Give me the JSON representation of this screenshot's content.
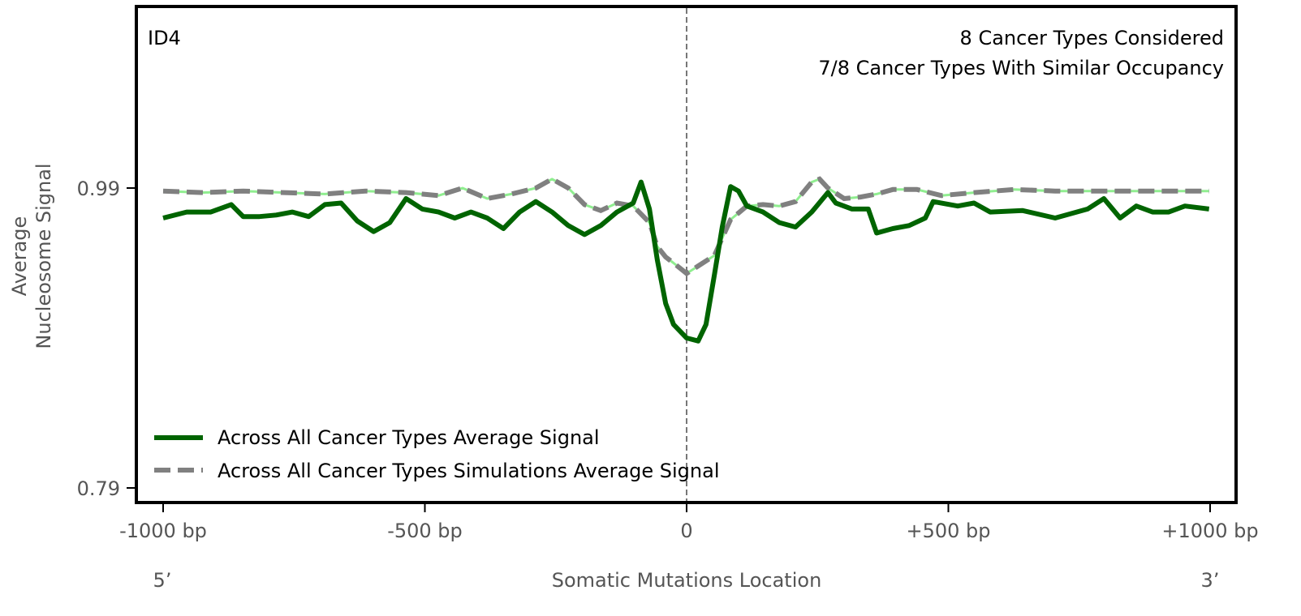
{
  "chart_data": {
    "type": "line",
    "panel_label": "ID4",
    "annotations": [
      "8 Cancer Types Considered",
      "7/8 Cancer Types With Similar Occupancy"
    ],
    "xlabel": "Somatic Mutations Location",
    "ylabel": [
      "Average",
      "Nucleosome Signal"
    ],
    "x_end_labels": [
      "5’",
      "3’"
    ],
    "xlim": [
      -1050,
      1050
    ],
    "ylim": [
      0.781,
      1.111
    ],
    "xticks": [
      -1000,
      -500,
      0,
      500,
      1000
    ],
    "xtick_labels": [
      "-1000 bp",
      "-500 bp",
      "0",
      "+500 bp",
      "+1000 bp"
    ],
    "yticks": [
      0.99,
      0.79
    ],
    "ytick_labels": [
      "0.99",
      "0.79"
    ],
    "vline_x": 0,
    "legend_position": "lower-left",
    "series": [
      {
        "name": "Across All Cancer Types Average Signal",
        "color": "#006400",
        "style": "solid",
        "x": [
          -1000,
          -955,
          -909,
          -870,
          -847,
          -816,
          -784,
          -753,
          -722,
          -691,
          -660,
          -629,
          -598,
          -567,
          -536,
          -505,
          -474,
          -443,
          -412,
          -381,
          -350,
          -319,
          -288,
          -257,
          -226,
          -195,
          -164,
          -133,
          -102,
          -87,
          -71,
          -56,
          -40,
          -25,
          0,
          22,
          37,
          53,
          68,
          84,
          99,
          115,
          146,
          177,
          208,
          239,
          270,
          285,
          316,
          347,
          363,
          394,
          425,
          456,
          471,
          518,
          549,
          580,
          642,
          704,
          766,
          797,
          828,
          859,
          890,
          921,
          952,
          998
        ],
        "y": [
          0.97,
          0.974,
          0.974,
          0.979,
          0.971,
          0.971,
          0.972,
          0.974,
          0.971,
          0.979,
          0.98,
          0.968,
          0.961,
          0.967,
          0.983,
          0.976,
          0.974,
          0.97,
          0.974,
          0.97,
          0.963,
          0.974,
          0.981,
          0.974,
          0.965,
          0.959,
          0.965,
          0.974,
          0.98,
          0.994,
          0.976,
          0.942,
          0.913,
          0.899,
          0.89,
          0.888,
          0.899,
          0.932,
          0.964,
          0.991,
          0.988,
          0.978,
          0.974,
          0.967,
          0.964,
          0.974,
          0.987,
          0.98,
          0.976,
          0.976,
          0.96,
          0.963,
          0.965,
          0.97,
          0.981,
          0.978,
          0.98,
          0.974,
          0.975,
          0.97,
          0.976,
          0.983,
          0.97,
          0.978,
          0.974,
          0.974,
          0.978,
          0.976
        ]
      },
      {
        "name": "Across All Cancer Types Simulations Average Signal",
        "color": "#808080",
        "underlay_color": "#90ee90",
        "style": "dashed",
        "x": [
          -1000,
          -924,
          -847,
          -769,
          -691,
          -614,
          -536,
          -474,
          -428,
          -381,
          -335,
          -288,
          -257,
          -226,
          -195,
          -164,
          -133,
          -102,
          -71,
          -56,
          -40,
          -25,
          0,
          22,
          53,
          84,
          115,
          146,
          177,
          208,
          239,
          254,
          270,
          301,
          332,
          363,
          394,
          440,
          487,
          549,
          626,
          704,
          781,
          859,
          936,
          998
        ],
        "y": [
          0.988,
          0.987,
          0.988,
          0.987,
          0.986,
          0.988,
          0.987,
          0.985,
          0.99,
          0.983,
          0.986,
          0.99,
          0.996,
          0.99,
          0.979,
          0.975,
          0.98,
          0.978,
          0.967,
          0.951,
          0.944,
          0.94,
          0.933,
          0.938,
          0.945,
          0.969,
          0.978,
          0.979,
          0.978,
          0.981,
          0.994,
          0.996,
          0.99,
          0.983,
          0.984,
          0.986,
          0.989,
          0.989,
          0.985,
          0.987,
          0.989,
          0.988,
          0.988,
          0.988,
          0.988,
          0.988
        ]
      }
    ]
  }
}
